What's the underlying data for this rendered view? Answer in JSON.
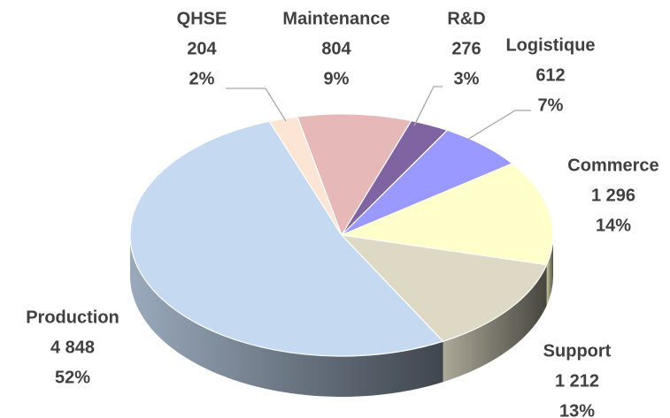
{
  "chart_data": {
    "type": "pie3d",
    "categories": [
      "QHSE",
      "Maintenance",
      "R&D",
      "Logistique",
      "Commerce",
      "Support",
      "Production"
    ],
    "values": [
      204,
      804,
      276,
      612,
      1296,
      1212,
      4848
    ],
    "value_labels": [
      "204",
      "804",
      "276",
      "612",
      "1 296",
      "1 212",
      "4 848"
    ],
    "percent_labels": [
      "2%",
      "9%",
      "3%",
      "7%",
      "14%",
      "13%",
      "52%"
    ],
    "colors": [
      "#fde5d6",
      "#e6b8b7",
      "#8064a2",
      "#9999ff",
      "#ffffcc",
      "#ddd9c4",
      "#c5d9f1"
    ]
  }
}
